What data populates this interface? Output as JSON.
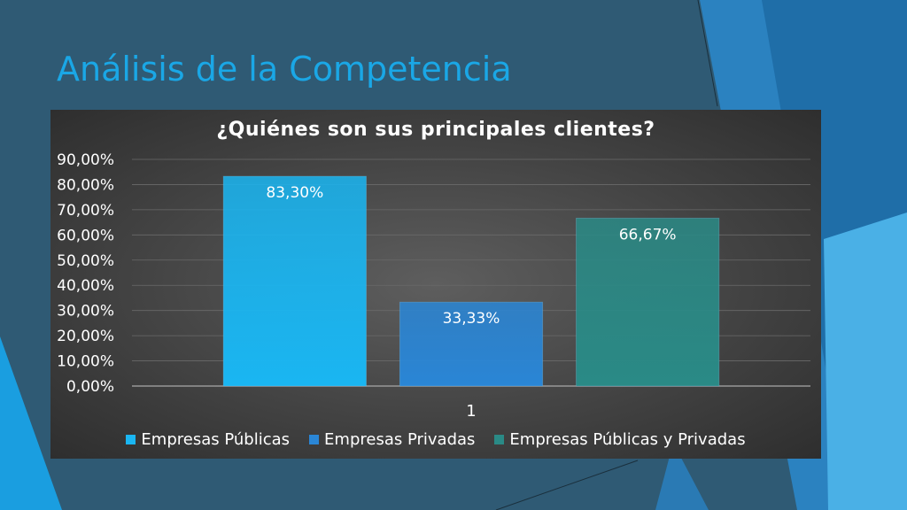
{
  "slide": {
    "title": "Análisis de la Competencia"
  },
  "colors": {
    "background": "#2f5a74",
    "title": "#1aa7e6"
  },
  "chart_data": {
    "type": "bar",
    "title": "¿Quiénes son sus principales clientes?",
    "xlabel": "",
    "ylabel": "",
    "categories": [
      "1"
    ],
    "ylim": [
      0,
      90
    ],
    "yticks": [
      "0,00%",
      "10,00%",
      "20,00%",
      "30,00%",
      "40,00%",
      "50,00%",
      "60,00%",
      "70,00%",
      "80,00%",
      "90,00%"
    ],
    "grid": true,
    "legend_position": "bottom",
    "series": [
      {
        "name": "Empresas Públicas",
        "values": [
          83.3
        ],
        "label": "83,30%",
        "color": "#1ab6f2"
      },
      {
        "name": "Empresas Privadas",
        "values": [
          33.33
        ],
        "label": "33,33%",
        "color": "#2a86d6"
      },
      {
        "name": "Empresas Públicas y Privadas",
        "values": [
          66.67
        ],
        "label": "66,67%",
        "color": "#2a8a86"
      }
    ]
  }
}
